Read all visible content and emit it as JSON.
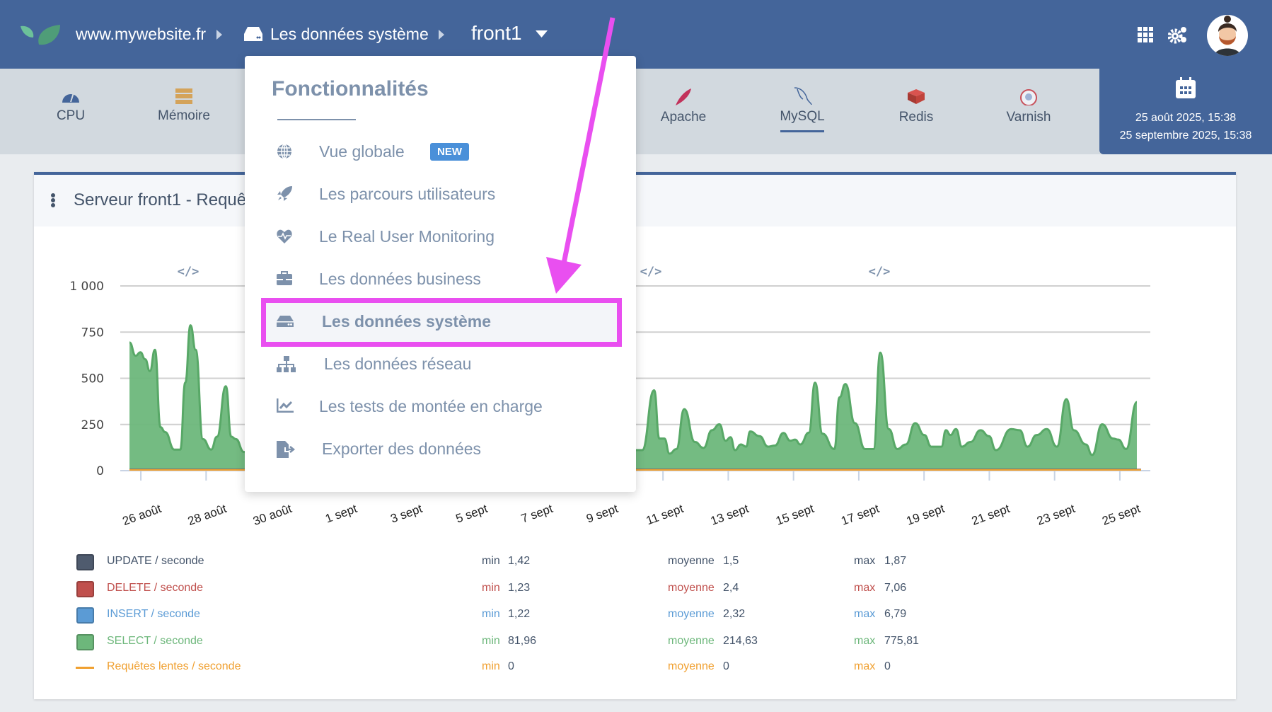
{
  "header": {
    "site": "www.mywebsite.fr",
    "section": "Les données système",
    "server": "front1",
    "icons": [
      "leaf-logo",
      "chevron-right-icon",
      "drive-icon",
      "caret-down-icon",
      "grid-icon",
      "gears-icon",
      "avatar"
    ]
  },
  "tabs": [
    {
      "label": "CPU",
      "icon": "gauge-icon"
    },
    {
      "label": "Mémoire",
      "icon": "memory-icon"
    },
    {
      "label": "Apache",
      "icon": "apache-feather-icon"
    },
    {
      "label": "MySQL",
      "icon": "mysql-dolphin-icon",
      "active": true
    },
    {
      "label": "Redis",
      "icon": "redis-icon"
    },
    {
      "label": "Varnish",
      "icon": "varnish-icon"
    }
  ],
  "date_range": {
    "start": "25 août 2025, 15:38",
    "end": "25 septembre 2025, 15:38"
  },
  "card": {
    "title": "Serveur front1 - Requê"
  },
  "dropdown": {
    "title": "Fonctionnalités",
    "items": [
      {
        "label": "Vue globale",
        "icon": "globe-icon",
        "badge": "NEW"
      },
      {
        "label": "Les parcours utilisateurs",
        "icon": "rocket-icon"
      },
      {
        "label": "Le Real User Monitoring",
        "icon": "heartbeat-icon"
      },
      {
        "label": "Les données business",
        "icon": "briefcase-icon"
      },
      {
        "label": "Les données système",
        "icon": "drive-icon",
        "selected": true
      },
      {
        "label": "Les données réseau",
        "icon": "sitemap-icon"
      },
      {
        "label": "Les tests de montée en charge",
        "icon": "chart-line-icon"
      },
      {
        "label": "Exporter des données",
        "icon": "file-export-icon"
      }
    ]
  },
  "colors": {
    "header": "#44659a",
    "highlight": "#e94ff0",
    "select": "#6db77b",
    "update": "#4f5b6e",
    "delete": "#c0504d",
    "insert": "#5b9bd5",
    "slow": "#f0a030"
  },
  "legend": [
    {
      "label": "UPDATE / seconde",
      "min_label": "min",
      "min": "1,42",
      "avg_label": "moyenne",
      "avg": "1,5",
      "max_label": "max",
      "max": "1,87",
      "color": "#4f5b6e"
    },
    {
      "label": "DELETE / seconde",
      "min_label": "min",
      "min": "1,23",
      "avg_label": "moyenne",
      "avg": "2,4",
      "max_label": "max",
      "max": "7,06",
      "color": "#c0504d"
    },
    {
      "label": "INSERT / seconde",
      "min_label": "min",
      "min": "1,22",
      "avg_label": "moyenne",
      "avg": "2,32",
      "max_label": "max",
      "max": "6,79",
      "color": "#5b9bd5"
    },
    {
      "label": "SELECT / seconde",
      "min_label": "min",
      "min": "81,96",
      "avg_label": "moyenne",
      "avg": "214,63",
      "max_label": "max",
      "max": "775,81",
      "color": "#6db77b"
    },
    {
      "label": "Requêtes lentes / seconde",
      "min_label": "min",
      "min": "0",
      "avg_label": "moyenne",
      "avg": "0",
      "max_label": "max",
      "max": "0",
      "color": "#f0a030"
    }
  ],
  "chart_data": {
    "type": "area",
    "ylim": [
      0,
      1000
    ],
    "y_ticks": [
      "0",
      "250",
      "500",
      "750",
      "1 000"
    ],
    "y_tick_values": [
      0,
      250,
      500,
      750,
      1000
    ],
    "x_range": [
      "2025-08-25T15:38",
      "2025-09-25T15:38"
    ],
    "x_tick_labels": [
      "26 août",
      "28 août",
      "30 août",
      "1 sept",
      "3 sept",
      "5 sept",
      "7 sept",
      "9 sept",
      "11 sept",
      "13 sept",
      "15 sept",
      "17 sept",
      "19 sept",
      "21 sept",
      "23 sept",
      "25 sept"
    ],
    "grid": true,
    "annotations": [
      "code-marker",
      "code-marker",
      "code-marker"
    ],
    "series": [
      {
        "name": "SELECT / seconde",
        "color": "#6db77b",
        "points": [
          [
            "2025-08-25T15:40",
            694
          ],
          [
            "2025-08-25T20:10",
            622
          ],
          [
            "2025-08-25T23:40",
            641
          ],
          [
            "2025-08-26T03:10",
            603
          ],
          [
            "2025-08-26T06:40",
            539
          ],
          [
            "2025-08-26T10:20",
            654
          ],
          [
            "2025-08-26T14:30",
            235
          ],
          [
            "2025-08-26T17:50",
            209
          ],
          [
            "2025-08-27T00:40",
            114
          ],
          [
            "2025-08-27T05:00",
            114
          ],
          [
            "2025-08-27T08:40",
            476
          ],
          [
            "2025-08-27T12:30",
            787
          ],
          [
            "2025-08-27T16:20",
            654
          ],
          [
            "2025-08-27T21:40",
            171
          ],
          [
            "2025-08-28T03:40",
            114
          ],
          [
            "2025-08-28T08:00",
            184
          ],
          [
            "2025-08-28T14:30",
            457
          ],
          [
            "2025-08-28T18:30",
            184
          ],
          [
            "2025-08-28T21:50",
            171
          ],
          [
            "2025-08-29T03:50",
            101
          ],
          [
            "2025-09-10T05:00",
            111
          ],
          [
            "2025-09-10T08:40",
            111
          ],
          [
            "2025-09-10T17:30",
            435
          ],
          [
            "2025-09-10T21:20",
            174
          ],
          [
            "2025-09-11T01:00",
            174
          ],
          [
            "2025-09-11T04:50",
            92
          ],
          [
            "2025-09-11T09:50",
            117
          ],
          [
            "2025-09-11T15:40",
            333
          ],
          [
            "2025-09-11T23:30",
            155
          ],
          [
            "2025-09-12T05:50",
            123
          ],
          [
            "2025-09-12T12:00",
            219
          ],
          [
            "2025-09-12T17:30",
            251
          ],
          [
            "2025-09-12T22:05",
            162
          ],
          [
            "2025-09-13T01:40",
            181
          ],
          [
            "2025-09-13T05:00",
            111
          ],
          [
            "2025-09-13T09:20",
            142
          ],
          [
            "2025-09-13T13:10",
            130
          ],
          [
            "2025-09-13T16:05",
            212
          ],
          [
            "2025-09-13T23:00",
            187
          ],
          [
            "2025-09-14T05:15",
            130
          ],
          [
            "2025-09-14T10:20",
            136
          ],
          [
            "2025-09-14T16:35",
            204
          ],
          [
            "2025-09-14T21:35",
            162
          ],
          [
            "2025-09-15T01:10",
            168
          ],
          [
            "2025-09-15T05:00",
            142
          ],
          [
            "2025-09-15T11:15",
            206
          ],
          [
            "2025-09-15T15:50",
            476
          ],
          [
            "2025-09-15T21:20",
            200
          ],
          [
            "2025-09-16T06:00",
            117
          ],
          [
            "2025-09-16T09:50",
            397
          ],
          [
            "2025-09-16T14:10",
            469
          ],
          [
            "2025-09-16T21:10",
            257
          ],
          [
            "2025-09-17T04:35",
            117
          ],
          [
            "2025-09-17T10:50",
            117
          ],
          [
            "2025-09-17T15:50",
            639
          ],
          [
            "2025-09-17T22:05",
            225
          ],
          [
            "2025-09-18T04:20",
            117
          ],
          [
            "2025-09-18T10:35",
            142
          ],
          [
            "2025-09-18T17:30",
            257
          ],
          [
            "2025-09-19T00:15",
            193
          ],
          [
            "2025-09-19T05:15",
            130
          ],
          [
            "2025-09-19T12:45",
            130
          ],
          [
            "2025-09-19T16:05",
            219
          ],
          [
            "2025-09-19T19:25",
            193
          ],
          [
            "2025-09-19T23:30",
            225
          ],
          [
            "2025-09-20T03:50",
            130
          ],
          [
            "2025-09-20T10:05",
            155
          ],
          [
            "2025-09-20T17:30",
            219
          ],
          [
            "2025-09-20T23:45",
            187
          ],
          [
            "2025-09-21T04:50",
            111
          ],
          [
            "2025-09-21T16:05",
            225
          ],
          [
            "2025-09-21T22:20",
            219
          ],
          [
            "2025-09-22T04:05",
            130
          ],
          [
            "2025-09-22T10:50",
            193
          ],
          [
            "2025-09-22T18:15",
            225
          ],
          [
            "2025-09-23T01:40",
            130
          ],
          [
            "2025-09-23T08:40",
            387
          ],
          [
            "2025-09-23T14:10",
            219
          ],
          [
            "2025-09-23T23:00",
            142
          ],
          [
            "2025-09-24T03:35",
            85
          ],
          [
            "2025-09-24T11:00",
            251
          ],
          [
            "2025-09-24T19:00",
            174
          ],
          [
            "2025-09-24T22:50",
            168
          ],
          [
            "2025-09-25T04:35",
            117
          ],
          [
            "2025-09-25T12:30",
            371
          ]
        ]
      }
    ]
  }
}
